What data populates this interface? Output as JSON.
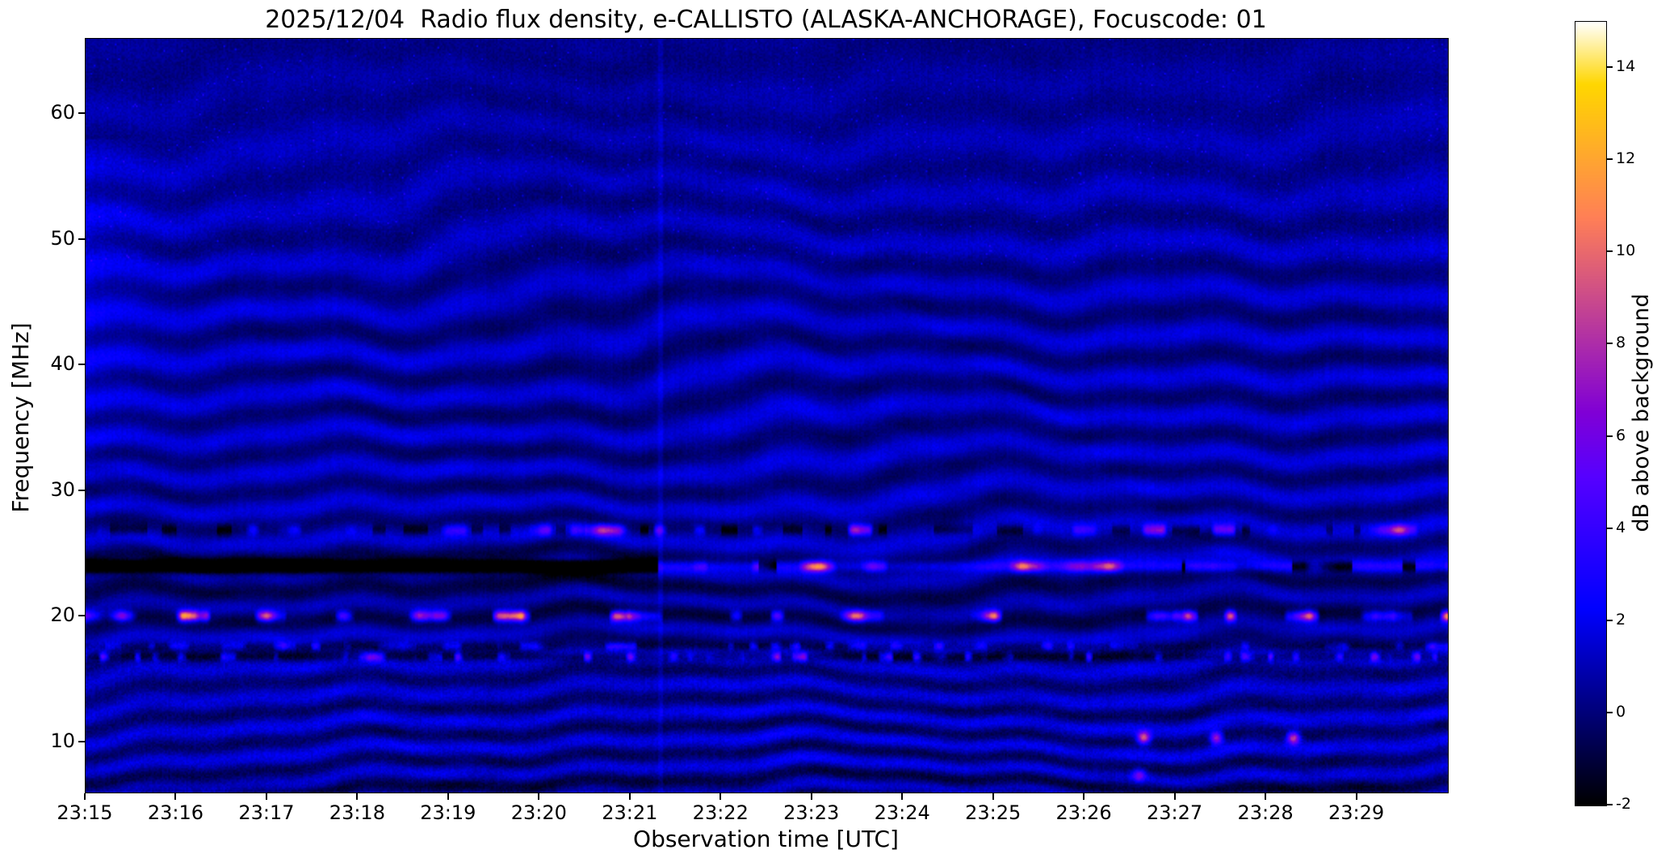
{
  "title": "2025/12/04  Radio flux density, e-CALLISTO (ALASKA-ANCHORAGE), Focuscode: 01",
  "date": "2025/12/04",
  "station": "ALASKA-ANCHORAGE",
  "focuscode": "01",
  "chart_data": {
    "type": "heatmap",
    "title": "2025/12/04  Radio flux density, e-CALLISTO (ALASKA-ANCHORAGE), Focuscode: 01",
    "xlabel": "Observation time [UTC]",
    "ylabel": "Frequency [MHz]",
    "colorbar_label": "dB above background",
    "colormap": "gnuplot2",
    "x_ticks": [
      "23:15",
      "23:16",
      "23:17",
      "23:18",
      "23:19",
      "23:20",
      "23:21",
      "23:22",
      "23:23",
      "23:24",
      "23:25",
      "23:26",
      "23:27",
      "23:28",
      "23:29"
    ],
    "x_start": "23:15",
    "x_end": "23:30",
    "duration_minutes": 15,
    "y_ticks": [
      10,
      20,
      30,
      40,
      50,
      60
    ],
    "freq_range_mhz": [
      6,
      66
    ],
    "colorbar_ticks": [
      -2,
      0,
      2,
      4,
      6,
      8,
      10,
      12,
      14
    ],
    "value_range_db": [
      -2,
      15
    ],
    "background": {
      "level_db": 0.8,
      "description": "dark blue background covered by wavy horizontal interference fringes (spacing ~2 MHz) that wiggle in time; fringes strongest 10-45 MHz, fading to nearly uniform dark blue above ~55 MHz; speckle noise strongest below 18 MHz"
    },
    "features": [
      {
        "id": "line24_dark",
        "type": "dark_line",
        "freq_mhz": 24.0,
        "t_min": 0,
        "t_max": 6.3,
        "depth_db": -6,
        "width_mhz": 0.6,
        "description": "solid black absorption line at 24 MHz from 23:15 until ~23:21:20"
      },
      {
        "id": "line24_bursts",
        "type": "burst_line",
        "freq_mhz": 24.0,
        "t_min": 6.3,
        "t_max": 15,
        "peak_db": 13,
        "width_mhz": 0.5,
        "description": "after ~23:21 the 24 MHz channel turns into intermittent bright orange/pink emission segments"
      },
      {
        "id": "line20_bursts",
        "type": "burst_line",
        "freq_mhz": 20.05,
        "t_min": 0,
        "t_max": 15,
        "peak_db": 12,
        "width_mhz": 0.45,
        "description": "intermittent bright bursts along ~20 MHz, denser before 23:21, sitting in a dark lane"
      },
      {
        "id": "line27_speckle",
        "type": "speckle_line",
        "freq_mhz": 26.9,
        "t_min": 0,
        "t_max": 15,
        "peak_db": 7,
        "description": "speckled bright/dark line near 27 MHz, brighter after 23:21"
      },
      {
        "id": "line168_speckle",
        "type": "speckle_line",
        "freq_mhz": 16.8,
        "t_min": 0,
        "t_max": 15,
        "peak_db": 6,
        "description": "dense speckled RFI line near 16.8 MHz alternating black and bright"
      },
      {
        "id": "line176_speckle",
        "type": "speckle_line",
        "freq_mhz": 17.65,
        "t_min": 0,
        "t_max": 15,
        "peak_db": 4,
        "description": "weaker speckled row near 17.6 MHz"
      },
      {
        "id": "topleft_patch",
        "type": "bright_patch",
        "t_min": 0,
        "t_max": 1.8,
        "freq_center_mhz": 46,
        "boost_db": 1.1,
        "description": "lighter blue haze with diagonal streaks in the top-left corner (23:15-23:16, ~35-55 MHz)"
      },
      {
        "id": "transition_column",
        "type": "vertical_line",
        "t_min": 6.33,
        "boost_db": 0.7,
        "description": "faint vertical line at ~23:21:20 where the 24 MHz line switches from absorption to emission"
      },
      {
        "id": "dots_10mhz",
        "type": "point_bursts",
        "points": [
          [
            11.65,
            10.35,
            9
          ],
          [
            12.45,
            10.35,
            8
          ],
          [
            13.3,
            10.35,
            9
          ],
          [
            11.6,
            7.4,
            5
          ]
        ],
        "description": "isolated bright point bursts near 10 MHz around 23:26.7, 23:27.5, 23:28.3 and a purple blob at 7.4 MHz"
      }
    ]
  }
}
